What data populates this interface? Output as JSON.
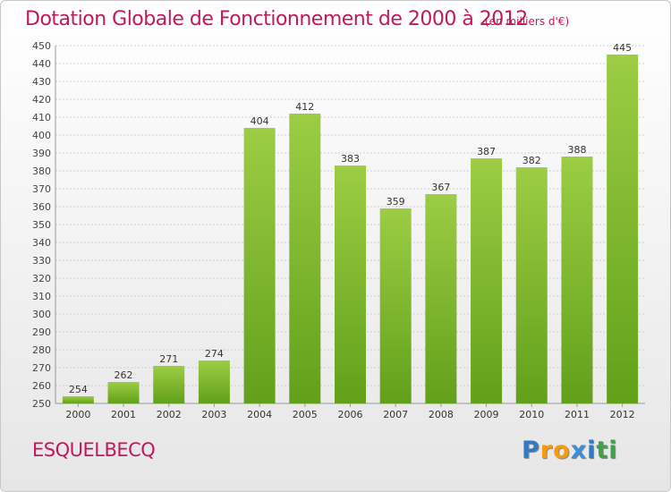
{
  "header": {
    "title": "Dotation Globale de Fonctionnement de 2000 à 2012",
    "subtitle": "(en milliers d'€)"
  },
  "footer": {
    "place": "ESQUELBECQ",
    "logo": "Proxiti"
  },
  "colors": {
    "bar_top": "#9ccd44",
    "bar_bottom": "#62a01a",
    "accent": "#c2185b",
    "logo_letters": [
      "#2e7bc4",
      "#f39c12",
      "#f39c12",
      "#3a8fd8",
      "#2e7bc4",
      "#43a047",
      "#43a047"
    ]
  },
  "chart_data": {
    "type": "bar",
    "title": "Dotation Globale de Fonctionnement de 2000 à 2012",
    "subtitle": "(en milliers d'€)",
    "categories": [
      "2000",
      "2001",
      "2002",
      "2003",
      "2004",
      "2005",
      "2006",
      "2007",
      "2008",
      "2009",
      "2010",
      "2011",
      "2012"
    ],
    "values": [
      254,
      262,
      271,
      274,
      404,
      412,
      383,
      359,
      367,
      387,
      382,
      388,
      445
    ],
    "ylim": [
      250,
      450
    ],
    "ytick_step": 10,
    "grid": true,
    "legend": "none"
  }
}
